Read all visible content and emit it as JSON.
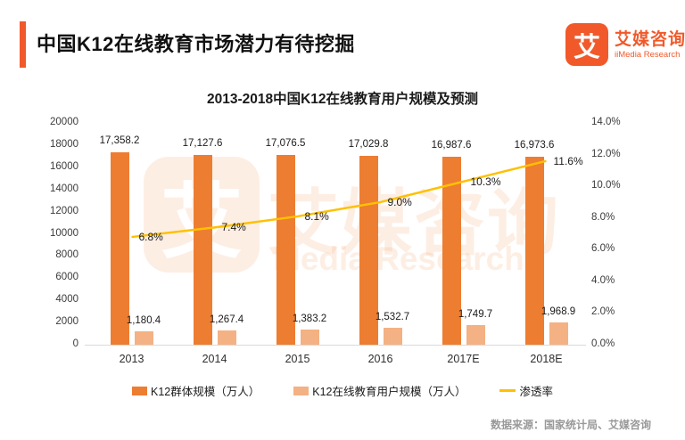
{
  "header": {
    "title": "中国K12在线教育市场潜力有待挖掘",
    "logo": {
      "glyph": "艾",
      "name_cn": "艾媒咨询",
      "name_en": "iiMedia Research"
    }
  },
  "chart_data": {
    "type": "bar",
    "title": "2013-2018中国K12在线教育用户规模及预测",
    "categories": [
      "2013",
      "2014",
      "2015",
      "2016",
      "2017E",
      "2018E"
    ],
    "series": [
      {
        "name": "K12群体规模（万人）",
        "type": "bar",
        "axis": "left",
        "color": "#ED7D31",
        "values": [
          17358.2,
          17127.6,
          17076.5,
          17029.8,
          16987.6,
          16973.6
        ]
      },
      {
        "name": "K12在线教育用户规模（万人）",
        "type": "bar",
        "axis": "left",
        "color": "#F4B183",
        "values": [
          1180.4,
          1267.4,
          1383.2,
          1532.7,
          1749.7,
          1968.9
        ]
      },
      {
        "name": "渗透率",
        "type": "line",
        "axis": "right",
        "color": "#FFC000",
        "values": [
          6.8,
          7.4,
          8.1,
          9.0,
          10.3,
          11.6
        ]
      }
    ],
    "axis_left": {
      "min": 0,
      "max": 20000,
      "step": 2000
    },
    "axis_right": {
      "min": 0,
      "max": 14,
      "step": 2,
      "suffix": "%"
    },
    "grid": false,
    "legend_position": "bottom"
  },
  "watermark": {
    "glyph": "艾",
    "text_cn": "艾媒咨询",
    "text_en": "Media Research"
  },
  "footer": {
    "source": "数据来源：国家统计局、艾媒咨询"
  },
  "colors": {
    "accent": "#F1592A",
    "bar_primary": "#ED7D31",
    "bar_secondary": "#F4B183",
    "line": "#FFC000"
  }
}
